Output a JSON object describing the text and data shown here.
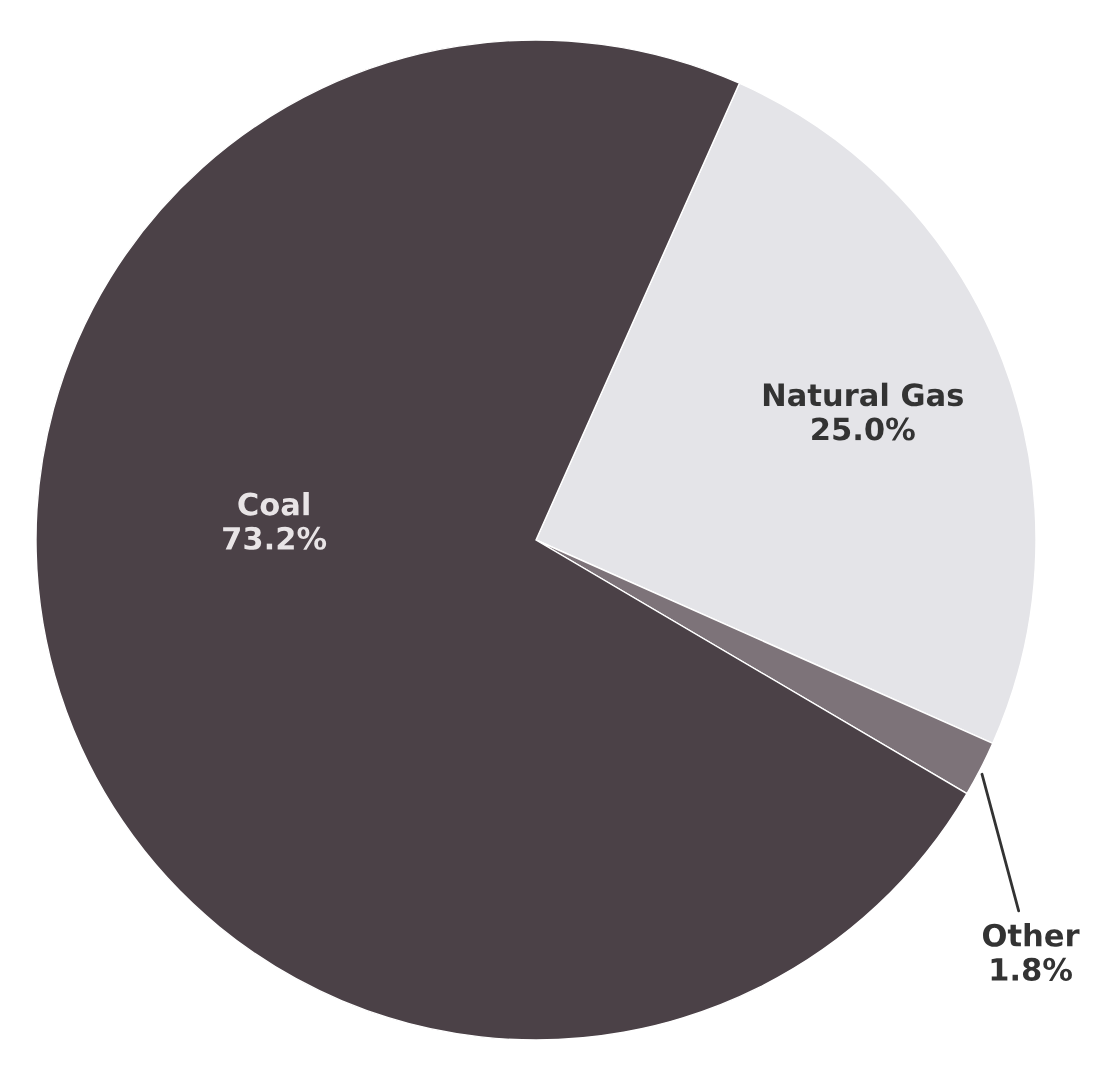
{
  "chart_data": {
    "type": "pie",
    "categories": [
      "Natural Gas",
      "Other",
      "Coal"
    ],
    "values": [
      25.0,
      1.8,
      73.2
    ],
    "colors": [
      "#e4e4e8",
      "#7d7379",
      "#4b4147"
    ],
    "value_labels": [
      "25.0%",
      "1.8%",
      "73.2%"
    ]
  }
}
